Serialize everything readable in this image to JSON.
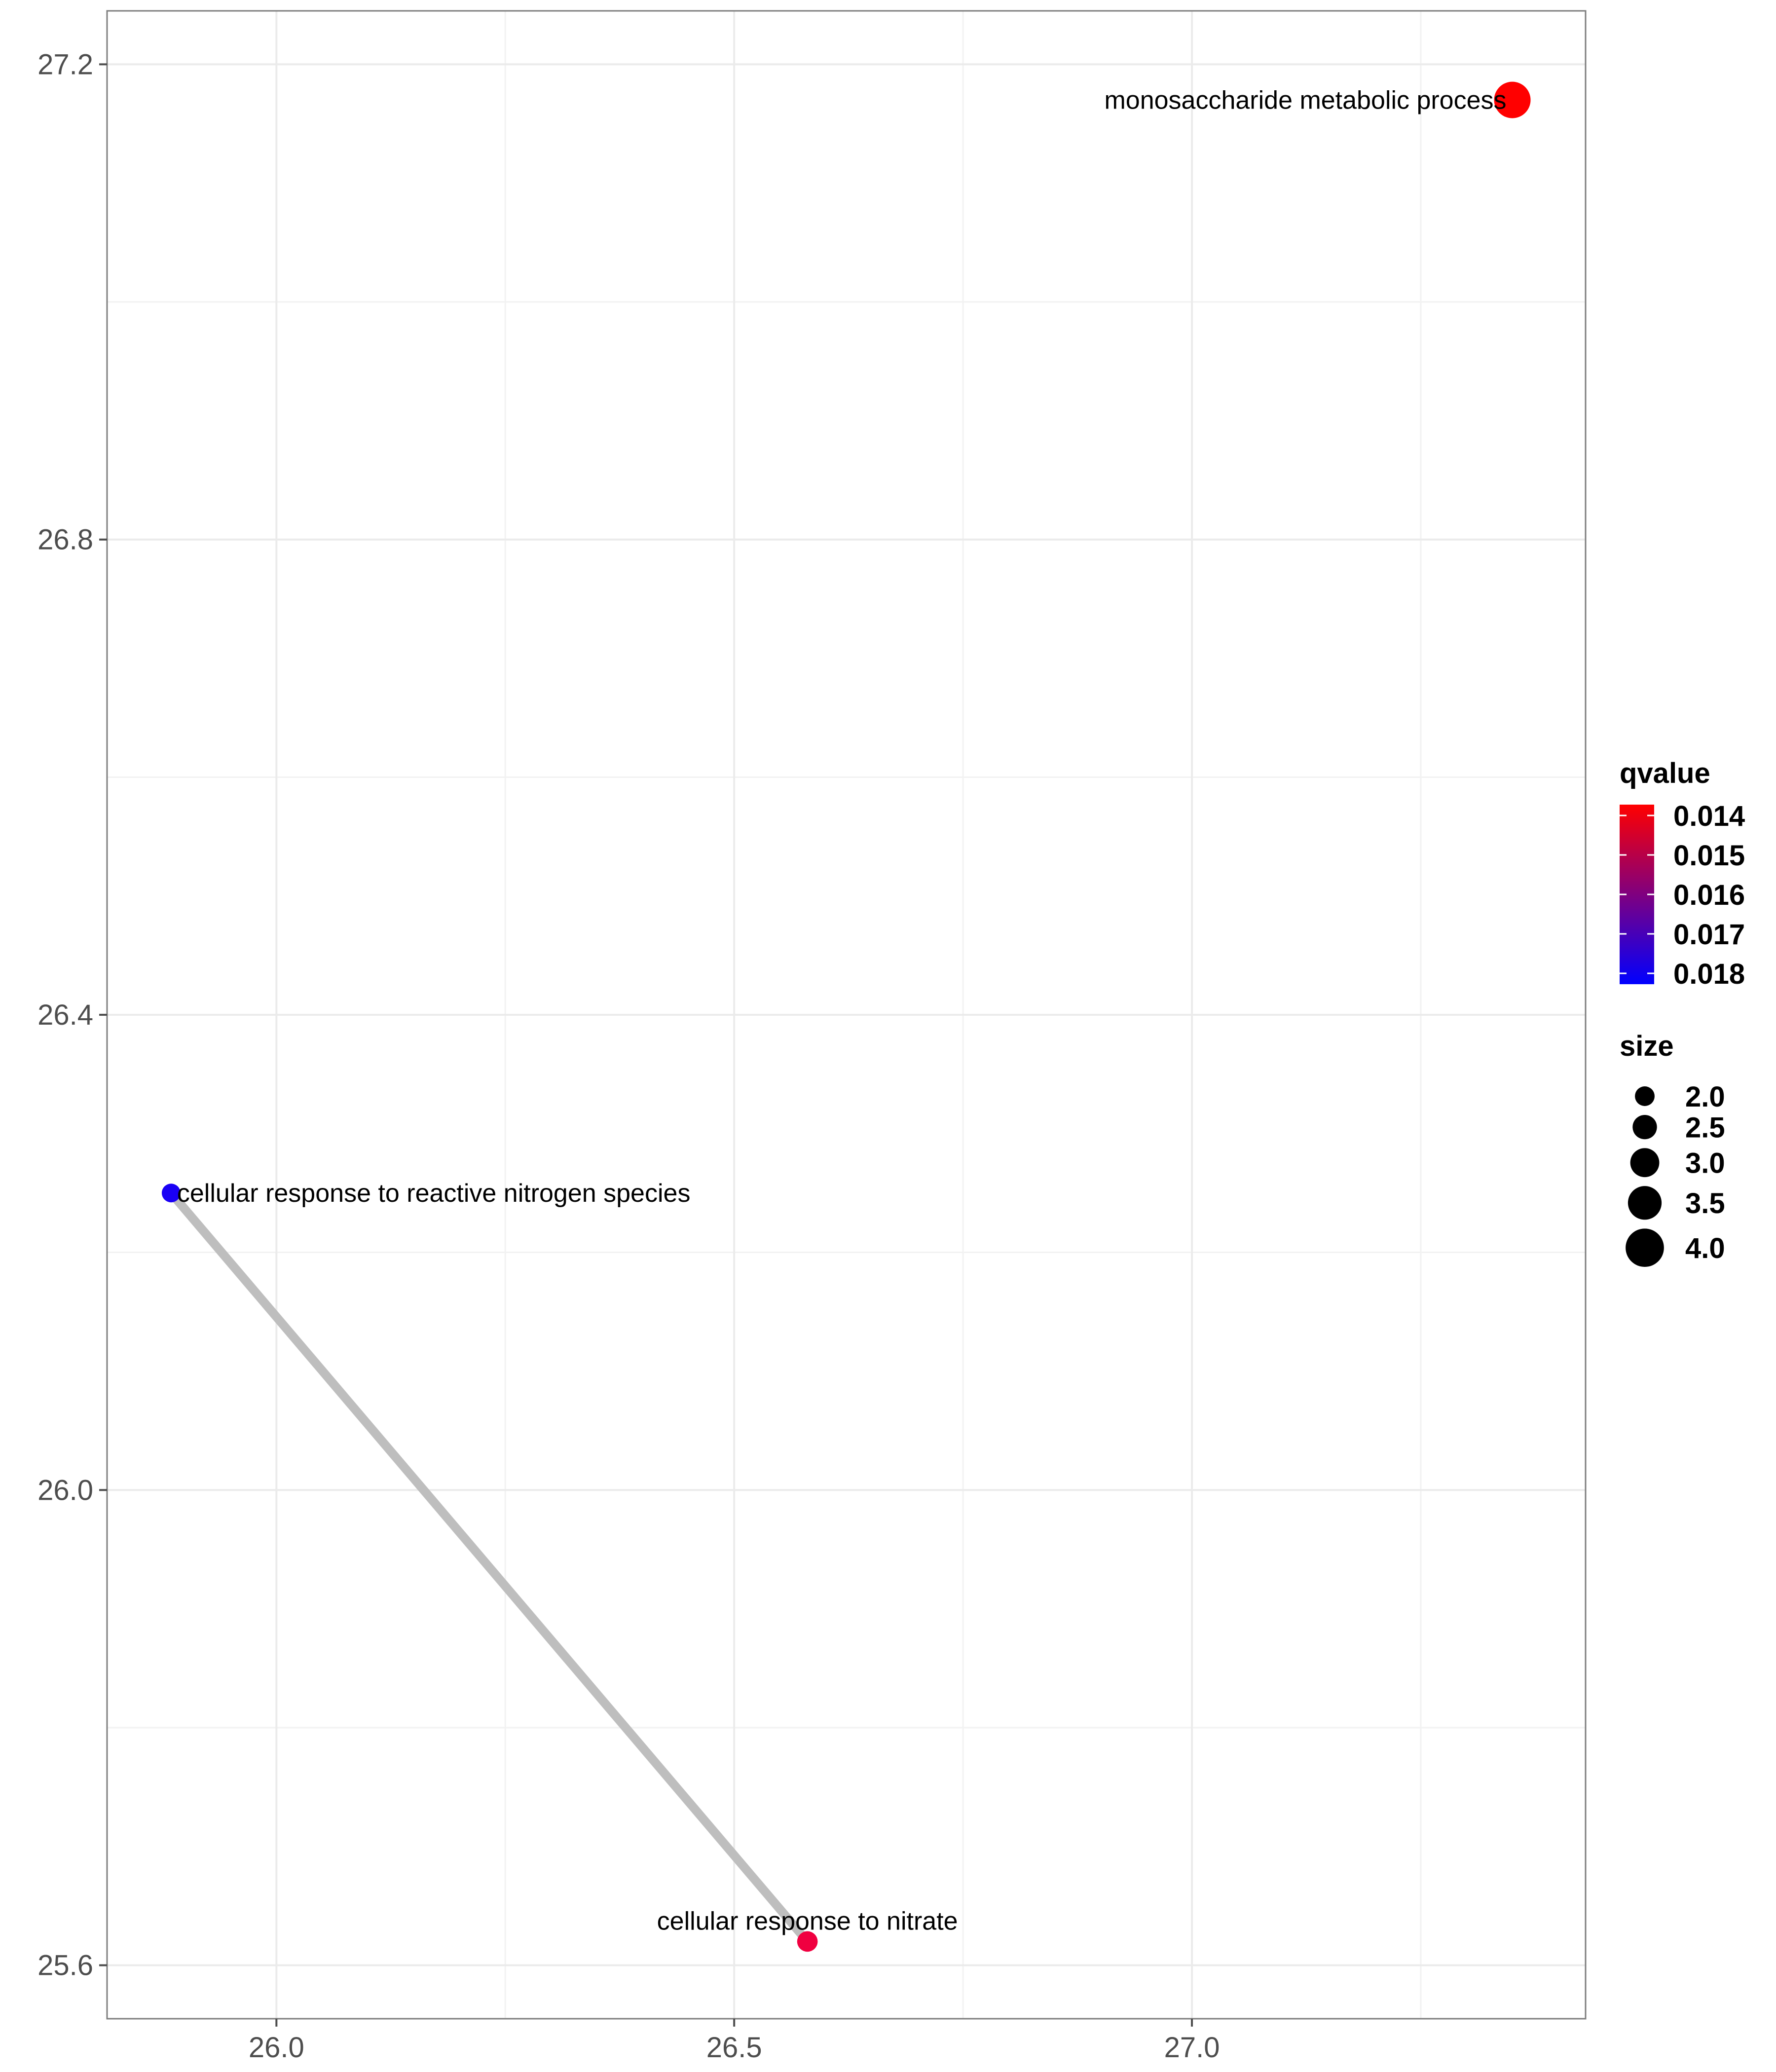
{
  "chart_data": {
    "type": "scatter",
    "xlim": [
      25.815,
      27.43
    ],
    "ylim": [
      25.555,
      27.245
    ],
    "x_ticks": [
      "26.0",
      "26.5",
      "27.0"
    ],
    "y_ticks": [
      "25.6",
      "26.0",
      "26.4",
      "26.8",
      "27.2"
    ],
    "grid": true,
    "legend_position": "right",
    "nodes": [
      {
        "label": "monosaccharide metabolic process",
        "x": 27.35,
        "y": 27.17,
        "qvalue": 0.014,
        "size": 4.0,
        "color": "#ff0000",
        "label_anchor": "end"
      },
      {
        "label": "cellular response to reactive nitrogen species",
        "x": 25.885,
        "y": 26.25,
        "qvalue": 0.018,
        "size": 2.0,
        "color": "#1a00f5",
        "label_anchor": "start"
      },
      {
        "label": "cellular response to nitrate",
        "x": 26.58,
        "y": 25.62,
        "qvalue": 0.0145,
        "size": 2.2,
        "color": "#f00040",
        "label_anchor": "middle"
      }
    ],
    "edges": [
      {
        "from": 1,
        "to": 2,
        "color": "#bebebe"
      }
    ],
    "legend": {
      "color": {
        "title": "qvalue",
        "labels": [
          "0.014",
          "0.015",
          "0.016",
          "0.017",
          "0.018"
        ],
        "low_color": "#0000ff",
        "high_color": "#ff0000"
      },
      "size": {
        "title": "size",
        "labels": [
          "2.0",
          "2.5",
          "3.0",
          "3.5",
          "4.0"
        ],
        "values": [
          2.0,
          2.5,
          3.0,
          3.5,
          4.0
        ]
      }
    }
  }
}
